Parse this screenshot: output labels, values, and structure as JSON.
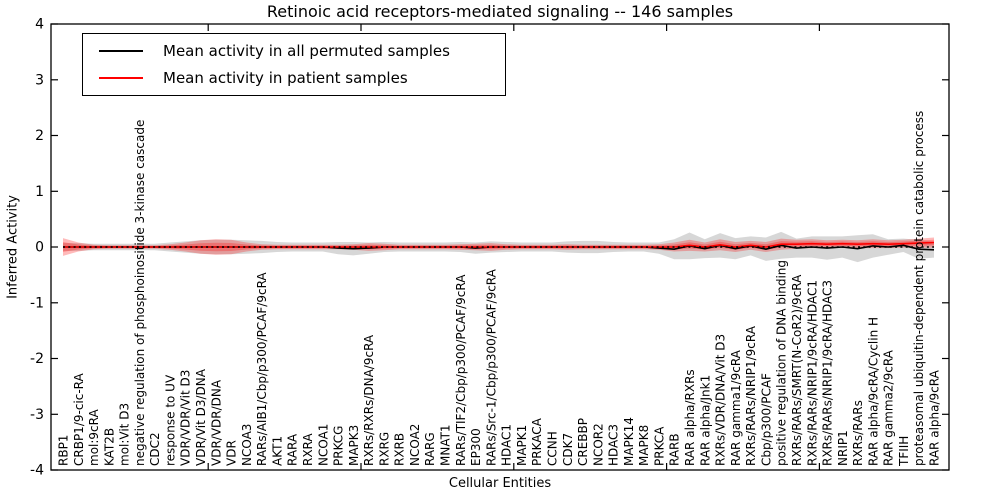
{
  "chart_data": {
    "type": "line",
    "title": "Retinoic acid receptors-mediated signaling -- 146 samples",
    "xlabel": "Cellular Entities",
    "ylabel": "Inferred Activity",
    "ylim": [
      -4,
      4
    ],
    "yticks": [
      -4,
      -3,
      -2,
      -1,
      0,
      1,
      2,
      3,
      4
    ],
    "xticks": [
      10,
      20,
      30,
      40,
      50
    ],
    "grid": false,
    "legend_position": "upper-left",
    "zero_line": {
      "y": 0,
      "style": "dotted",
      "color": "#000000"
    },
    "categories": [
      "RBP1",
      "CRBP1/9-cic-RA",
      "mol:9cRA",
      "KAT2B",
      "mol:Vit D3",
      "negative regulation of phosphoinositide 3-kinase cascade",
      "CDC2",
      "response to UV",
      "VDR/VDR/Vit D3",
      "VDR/Vit D3/DNA",
      "VDR/VDR/DNA",
      "VDR",
      "NCOA3",
      "RARs/AIB1/Cbp/p300/PCAF/9cRA",
      "AKT1",
      "RARA",
      "RXRA",
      "NCOA1",
      "PRKCG",
      "MAPK3",
      "RXRs/RXRs/DNA/9cRA",
      "RXRG",
      "RXRB",
      "NCOA2",
      "RARG",
      "MNAT1",
      "RARs/TIF2/Cbp/p300/PCAF/9cRA",
      "EP300",
      "RARs/Src-1/Cbp/p300/PCAF/9cRA",
      "HDAC1",
      "MAPK1",
      "PRKACA",
      "CCNH",
      "CDK7",
      "CREBBP",
      "NCOR2",
      "HDAC3",
      "MAPK14",
      "MAPK8",
      "PRKCA",
      "RARB",
      "RAR alpha/RXRs",
      "RAR alpha/Jnk1",
      "RXRs/VDR/DNA/Vit D3",
      "RAR gamma1/9cRA",
      "RXRs/RARs/NRIP1/9cRA",
      "Cbp/p300/PCAF",
      "positive regulation of DNA binding",
      "RXRs/RARs/SMRT(N-CoR2)/9cRA",
      "RXRs/RARs/NRIP1/9cRA/HDAC1",
      "RXRs/RARs/NRIP1/9cRA/HDAC3",
      "NRIP1",
      "RXRs/RARs",
      "RAR alpha/9cRA/Cyclin H",
      "RAR gamma2/9cRA",
      "TFIIH",
      "proteasomal ubiquitin-dependent protein catabolic process",
      "RAR alpha/9cRA"
    ],
    "series": [
      {
        "name": "Mean activity in all permuted samples",
        "color": "#000000",
        "band_color": "rgba(130,130,130,0.32)",
        "mean": [
          0,
          0,
          0,
          0,
          0,
          0,
          0,
          0,
          0,
          0,
          0,
          0,
          0,
          0,
          0,
          0,
          0,
          0,
          -0.02,
          -0.03,
          -0.02,
          0,
          0,
          0,
          0,
          0,
          0,
          -0.02,
          0,
          0,
          0,
          0,
          0,
          0,
          0,
          0,
          0,
          0,
          0,
          -0.02,
          -0.04,
          0.02,
          -0.03,
          0.03,
          -0.03,
          0.02,
          -0.04,
          0.03,
          -0.02,
          0,
          -0.02,
          0,
          -0.03,
          0.02,
          0,
          0.03,
          -0.04,
          -0.05
        ],
        "std": [
          0.07,
          0.07,
          0.06,
          0.06,
          0.06,
          0.06,
          0.06,
          0.08,
          0.1,
          0.12,
          0.13,
          0.13,
          0.12,
          0.11,
          0.09,
          0.08,
          0.08,
          0.08,
          0.11,
          0.12,
          0.1,
          0.09,
          0.08,
          0.08,
          0.08,
          0.08,
          0.09,
          0.1,
          0.1,
          0.09,
          0.08,
          0.08,
          0.08,
          0.1,
          0.11,
          0.11,
          0.09,
          0.08,
          0.08,
          0.1,
          0.18,
          0.24,
          0.17,
          0.22,
          0.19,
          0.17,
          0.21,
          0.24,
          0.17,
          0.19,
          0.21,
          0.19,
          0.24,
          0.21,
          0.14,
          0.12,
          0.17,
          0.14
        ]
      },
      {
        "name": "Mean activity in patient samples",
        "color": "#ff0000",
        "band_color": "rgba(255,0,0,0.27)",
        "mean": [
          0,
          0,
          0,
          0,
          0,
          0,
          0,
          0,
          0,
          0,
          0,
          0,
          0,
          0,
          0,
          0,
          0,
          0,
          0,
          0,
          0,
          0,
          0,
          0,
          0,
          0,
          0,
          0,
          0,
          0,
          0,
          0,
          0,
          0,
          0,
          0,
          0,
          0,
          0,
          0,
          0,
          0.03,
          0,
          0.04,
          0,
          0.03,
          0,
          0.05,
          0.05,
          0.06,
          0.05,
          0.06,
          0.05,
          0.06,
          0.05,
          0.06,
          0.07,
          0.08
        ],
        "std": [
          0.16,
          0.08,
          0.04,
          0.03,
          0.03,
          0.03,
          0.03,
          0.05,
          0.08,
          0.12,
          0.14,
          0.13,
          0.08,
          0.05,
          0.04,
          0.04,
          0.04,
          0.04,
          0.04,
          0.05,
          0.07,
          0.06,
          0.04,
          0.04,
          0.04,
          0.04,
          0.05,
          0.06,
          0.07,
          0.05,
          0.04,
          0.04,
          0.04,
          0.05,
          0.04,
          0.04,
          0.04,
          0.04,
          0.04,
          0.05,
          0.08,
          0.1,
          0.08,
          0.1,
          0.09,
          0.08,
          0.09,
          0.1,
          0.08,
          0.08,
          0.07,
          0.07,
          0.07,
          0.08,
          0.07,
          0.07,
          0.08,
          0.09
        ]
      }
    ]
  }
}
